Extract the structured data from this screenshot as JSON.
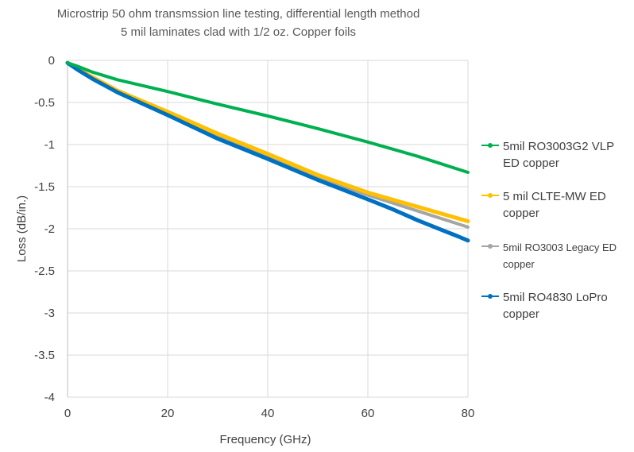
{
  "chart_data": {
    "type": "line",
    "title": "Microstrip 50 ohm transmssion line testing, differential length method",
    "subtitle": "5 mil laminates clad with 1/2 oz. Copper foils",
    "xlabel": "Frequency (GHz)",
    "ylabel": "Loss (dB/in.)",
    "xlim": [
      0,
      80
    ],
    "ylim": [
      -4,
      0
    ],
    "x_ticks": [
      "0",
      "20",
      "40",
      "60",
      "80"
    ],
    "y_ticks": [
      "0",
      "-0.5",
      "-1",
      "-1.5",
      "-2",
      "-2.5",
      "-3",
      "-3.5",
      "-4"
    ],
    "grid": true,
    "legend_position": "right",
    "series": [
      {
        "name_lines": [
          "5mil RO3003G2 VLP",
          "ED copper"
        ],
        "color": "#00b050",
        "x": [
          0,
          2,
          5,
          10,
          20,
          30,
          40,
          50,
          60,
          70,
          80
        ],
        "y": [
          -0.03,
          -0.07,
          -0.14,
          -0.23,
          -0.37,
          -0.52,
          -0.66,
          -0.81,
          -0.97,
          -1.14,
          -1.33
        ]
      },
      {
        "name_lines": [
          "5 mil CLTE-MW ED",
          "copper"
        ],
        "color": "#ffc000",
        "x": [
          0,
          2,
          5,
          10,
          20,
          30,
          40,
          50,
          60,
          70,
          80
        ],
        "y": [
          -0.03,
          -0.1,
          -0.2,
          -0.36,
          -0.61,
          -0.87,
          -1.11,
          -1.36,
          -1.57,
          -1.74,
          -1.91
        ]
      },
      {
        "name_lines": [
          "5mil RO3003 Legacy ED",
          "copper"
        ],
        "color": "#a5a5a5",
        "x": [
          0,
          2,
          5,
          10,
          20,
          30,
          40,
          50,
          60,
          70,
          80
        ],
        "y": [
          -0.03,
          -0.1,
          -0.21,
          -0.37,
          -0.64,
          -0.9,
          -1.13,
          -1.39,
          -1.6,
          -1.79,
          -1.98
        ]
      },
      {
        "name_lines": [
          "5mil RO4830 LoPro",
          "copper"
        ],
        "color": "#0070c0",
        "x": [
          0,
          2,
          5,
          10,
          20,
          30,
          40,
          50,
          60,
          65,
          70,
          75,
          78,
          80
        ],
        "y": [
          -0.03,
          -0.11,
          -0.22,
          -0.38,
          -0.65,
          -0.93,
          -1.17,
          -1.42,
          -1.65,
          -1.77,
          -1.9,
          -2.02,
          -2.09,
          -2.14
        ]
      }
    ]
  }
}
